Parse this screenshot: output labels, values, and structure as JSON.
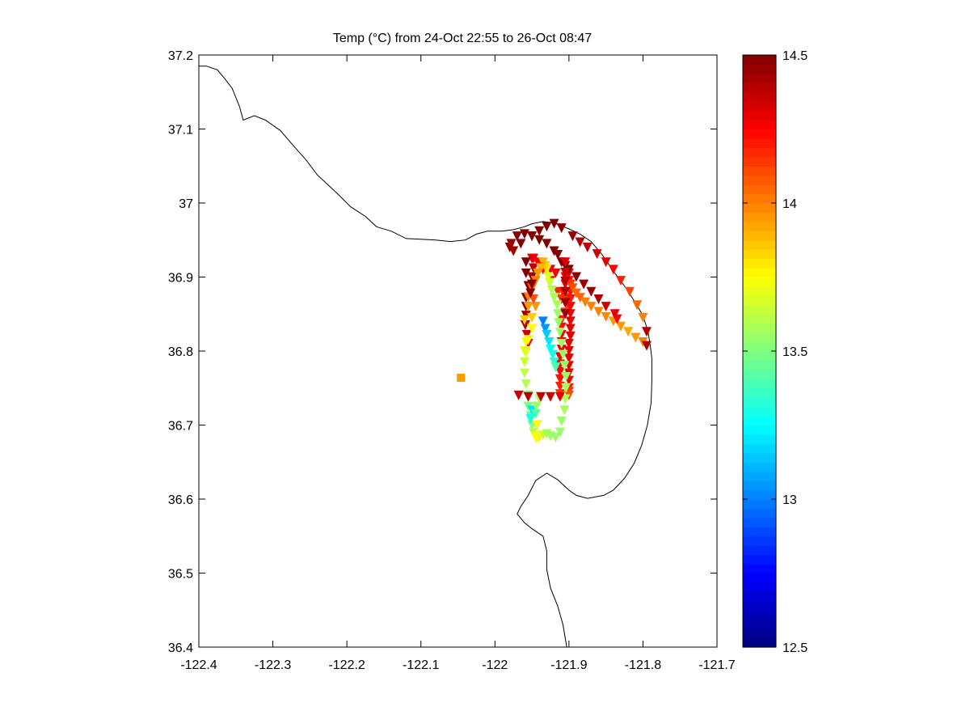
{
  "chart_data": {
    "type": "scatter",
    "title": "Temp (°C) from 24-Oct 22:55 to 26-Oct 08:47",
    "xlabel": "",
    "ylabel": "",
    "xlim": [
      -122.4,
      -121.7
    ],
    "ylim": [
      36.4,
      37.2
    ],
    "x_ticks": [
      -122.4,
      -122.3,
      -122.2,
      -122.1,
      -122.0,
      -121.9,
      -121.8,
      -121.7
    ],
    "x_tick_labels": [
      "-122.4",
      "-122.3",
      "-122.2",
      "-122.1",
      "-122",
      "-121.9",
      "-121.8",
      "-121.7"
    ],
    "y_ticks": [
      36.4,
      36.5,
      36.6,
      36.7,
      36.8,
      36.9,
      37.0,
      37.1,
      37.2
    ],
    "y_tick_labels": [
      "36.4",
      "36.5",
      "36.6",
      "36.7",
      "36.8",
      "36.9",
      "37",
      "37.1",
      "37.2"
    ],
    "grid": false,
    "colorbar": {
      "colormap": "jet",
      "range": [
        12.5,
        14.5
      ],
      "ticks": [
        12.5,
        13,
        13.5,
        14,
        14.5
      ],
      "tick_labels": [
        "12.5",
        "13",
        "13.5",
        "14",
        "14.5"
      ]
    },
    "coastline": [
      [
        -122.4,
        37.185
      ],
      [
        -122.39,
        37.185
      ],
      [
        -122.375,
        37.18
      ],
      [
        -122.365,
        37.168
      ],
      [
        -122.355,
        37.155
      ],
      [
        -122.345,
        37.13
      ],
      [
        -122.34,
        37.112
      ],
      [
        -122.325,
        37.118
      ],
      [
        -122.31,
        37.112
      ],
      [
        -122.29,
        37.098
      ],
      [
        -122.27,
        37.075
      ],
      [
        -122.255,
        37.058
      ],
      [
        -122.24,
        37.038
      ],
      [
        -122.225,
        37.024
      ],
      [
        -122.21,
        37.01
      ],
      [
        -122.195,
        36.995
      ],
      [
        -122.175,
        36.982
      ],
      [
        -122.16,
        36.968
      ],
      [
        -122.14,
        36.962
      ],
      [
        -122.12,
        36.952
      ],
      [
        -122.1,
        36.951
      ],
      [
        -122.08,
        36.95
      ],
      [
        -122.06,
        36.948
      ],
      [
        -122.04,
        36.95
      ],
      [
        -122.025,
        36.958
      ],
      [
        -122.01,
        36.962
      ],
      [
        -121.99,
        36.962
      ],
      [
        -121.975,
        36.964
      ],
      [
        -121.96,
        36.968
      ],
      [
        -121.95,
        36.972
      ],
      [
        -121.935,
        36.975
      ],
      [
        -121.92,
        36.973
      ],
      [
        -121.9,
        36.965
      ],
      [
        -121.885,
        36.958
      ],
      [
        -121.87,
        36.948
      ],
      [
        -121.855,
        36.93
      ],
      [
        -121.84,
        36.908
      ],
      [
        -121.825,
        36.888
      ],
      [
        -121.81,
        36.865
      ],
      [
        -121.8,
        36.848
      ],
      [
        -121.793,
        36.826
      ],
      [
        -121.79,
        36.806
      ],
      [
        -121.788,
        36.79
      ],
      [
        -121.788,
        36.76
      ],
      [
        -121.789,
        36.73
      ],
      [
        -121.794,
        36.7
      ],
      [
        -121.802,
        36.672
      ],
      [
        -121.812,
        36.648
      ],
      [
        -121.825,
        36.628
      ],
      [
        -121.84,
        36.612
      ],
      [
        -121.853,
        36.605
      ],
      [
        -121.875,
        36.601
      ],
      [
        -121.89,
        36.605
      ],
      [
        -121.9,
        36.612
      ],
      [
        -121.915,
        36.626
      ],
      [
        -121.93,
        36.635
      ],
      [
        -121.945,
        36.625
      ],
      [
        -121.955,
        36.605
      ],
      [
        -121.965,
        36.59
      ],
      [
        -121.97,
        36.58
      ],
      [
        -121.96,
        36.568
      ],
      [
        -121.95,
        36.56
      ],
      [
        -121.935,
        36.55
      ],
      [
        -121.93,
        36.53
      ],
      [
        -121.93,
        36.505
      ],
      [
        -121.925,
        36.48
      ],
      [
        -121.915,
        36.455
      ],
      [
        -121.908,
        36.43
      ],
      [
        -121.905,
        36.412
      ],
      [
        -121.903,
        36.4
      ]
    ],
    "series": [
      {
        "marker": "square",
        "x": [
          -122.046
        ],
        "y": [
          36.764
        ],
        "c": [
          13.95
        ]
      },
      {
        "marker": "triangle-down",
        "x": [
          -121.95,
          -121.948,
          -121.95,
          -121.955,
          -121.958,
          -121.958,
          -121.958,
          -121.959,
          -121.957,
          -121.955,
          -121.948,
          -121.942,
          -121.938,
          -121.935,
          -121.925,
          -121.915,
          -121.905,
          -121.902,
          -121.905,
          -121.91,
          -121.91,
          -121.91,
          -121.91,
          -121.91,
          -121.912,
          -121.912,
          -121.912,
          -121.912,
          -121.912,
          -121.912,
          -121.91,
          -121.908,
          -121.905,
          -121.925,
          -121.918,
          -121.905,
          -121.898,
          -121.898,
          -121.898,
          -121.898,
          -121.898,
          -121.898,
          -121.898,
          -121.898,
          -121.9,
          -121.9,
          -121.9,
          -121.9,
          -121.9,
          -121.9,
          -121.9,
          -121.9,
          -121.9,
          -121.9,
          -121.9,
          -121.898,
          -121.895,
          -121.89,
          -121.885,
          -121.878,
          -121.87,
          -121.86,
          -121.85,
          -121.84,
          -121.83,
          -121.82,
          -121.81,
          -121.8,
          -121.795,
          -121.835,
          -121.838,
          -121.85,
          -121.86,
          -121.87,
          -121.88,
          -121.89,
          -121.9,
          -121.905,
          -121.91,
          -121.915,
          -121.92,
          -121.93,
          -121.94,
          -121.95,
          -121.96,
          -121.97,
          -121.978,
          -121.98,
          -121.975,
          -121.965,
          -121.95,
          -121.94,
          -121.93,
          -121.92,
          -121.91,
          -121.895,
          -121.885,
          -121.875,
          -121.862,
          -121.85,
          -121.84,
          -121.83,
          -121.818,
          -121.808,
          -121.8,
          -121.795,
          -121.945,
          -121.95,
          -121.95,
          -121.955,
          -121.96,
          -121.96,
          -121.96,
          -121.958,
          -121.955,
          -121.955,
          -121.952,
          -121.95,
          -121.948,
          -121.946,
          -121.944,
          -121.94,
          -121.935,
          -121.93,
          -121.925,
          -121.918,
          -121.912,
          -121.91,
          -121.906,
          -121.905,
          -121.904,
          -121.904,
          -121.906,
          -121.908,
          -121.91,
          -121.912,
          -121.914,
          -121.915,
          -121.916,
          -121.92,
          -121.923,
          -121.926,
          -121.928,
          -121.93,
          -121.932,
          -121.935,
          -121.938,
          -121.942,
          -121.945,
          -121.95,
          -121.948,
          -121.955,
          -121.955,
          -121.96,
          -121.958,
          -121.958,
          -121.935,
          -121.932,
          -121.93,
          -121.927,
          -121.925,
          -121.922,
          -121.92,
          -121.918,
          -121.95,
          -121.952,
          -121.945,
          -121.944,
          -121.94,
          -121.943,
          -121.968,
          -121.955,
          -121.938,
          -121.925,
          -121.912,
          -121.958,
          -121.958,
          -121.95,
          -121.952,
          -121.905,
          -121.905,
          -121.905,
          -121.905,
          -121.905,
          -121.905
        ],
        "y": [
          36.925,
          36.912,
          36.9,
          36.888,
          36.872,
          36.86,
          36.848,
          36.835,
          36.822,
          36.81,
          36.925,
          36.92,
          36.915,
          36.91,
          36.895,
          36.88,
          36.872,
          36.862,
          36.852,
          36.842,
          36.832,
          36.822,
          36.812,
          36.802,
          36.792,
          36.782,
          36.772,
          36.762,
          36.752,
          36.742,
          36.87,
          36.88,
          36.89,
          36.91,
          36.905,
          36.9,
          36.89,
          36.88,
          36.87,
          36.86,
          36.85,
          36.84,
          36.83,
          36.82,
          36.81,
          36.8,
          36.79,
          36.78,
          36.77,
          36.76,
          36.75,
          36.745,
          36.74,
          36.905,
          36.895,
          36.89,
          36.885,
          36.878,
          36.872,
          36.866,
          36.86,
          36.853,
          36.846,
          36.84,
          36.833,
          36.826,
          36.818,
          36.812,
          36.807,
          36.843,
          36.85,
          36.86,
          36.87,
          36.88,
          36.89,
          36.9,
          36.91,
          36.915,
          36.92,
          36.93,
          36.935,
          36.945,
          36.95,
          36.955,
          36.958,
          36.955,
          36.945,
          36.94,
          36.935,
          36.945,
          36.955,
          36.962,
          36.968,
          36.972,
          36.966,
          36.955,
          36.947,
          36.94,
          36.931,
          36.92,
          36.91,
          36.895,
          36.88,
          36.862,
          36.845,
          36.826,
          36.86,
          36.845,
          36.83,
          36.815,
          36.8,
          36.785,
          36.77,
          36.755,
          36.74,
          36.725,
          36.712,
          36.7,
          36.69,
          36.685,
          36.682,
          36.683,
          36.686,
          36.688,
          36.685,
          36.683,
          36.69,
          36.705,
          36.72,
          36.735,
          36.75,
          36.765,
          36.78,
          36.795,
          36.81,
          36.825,
          36.838,
          36.85,
          36.862,
          36.872,
          36.882,
          36.892,
          36.9,
          36.91,
          36.915,
          36.92,
          36.912,
          36.905,
          36.895,
          36.885,
          36.87,
          36.873,
          36.86,
          36.842,
          36.812,
          36.798,
          36.84,
          36.83,
          36.822,
          36.812,
          36.802,
          36.795,
          36.785,
          36.778,
          36.72,
          36.708,
          36.715,
          36.725,
          36.735,
          36.7,
          36.74,
          36.738,
          36.738,
          36.738,
          36.738,
          36.92,
          36.905,
          36.89,
          36.878,
          36.92,
          36.906,
          36.894,
          36.88,
          36.865,
          36.85
        ],
        "c": [
          14.3,
          14.38,
          14.45,
          14.48,
          14.5,
          14.48,
          14.45,
          14.4,
          14.35,
          14.3,
          14.3,
          14.28,
          14.25,
          14.22,
          14.2,
          14.18,
          14.15,
          14.15,
          14.18,
          14.2,
          14.22,
          14.25,
          14.27,
          14.28,
          14.28,
          14.26,
          14.25,
          14.22,
          14.2,
          14.15,
          14.15,
          14.2,
          14.25,
          14.3,
          14.28,
          14.25,
          14.22,
          14.22,
          14.22,
          14.25,
          14.28,
          14.3,
          14.3,
          14.3,
          14.3,
          14.3,
          14.3,
          14.3,
          14.3,
          14.28,
          14.2,
          14.15,
          14.1,
          14.25,
          14.22,
          14.15,
          14.1,
          14.05,
          14.05,
          14.0,
          14.0,
          14.0,
          13.98,
          13.95,
          13.95,
          13.92,
          13.95,
          14.0,
          14.4,
          14.25,
          14.3,
          14.35,
          14.4,
          14.45,
          14.45,
          14.48,
          14.5,
          14.5,
          14.5,
          14.5,
          14.5,
          14.5,
          14.5,
          14.5,
          14.5,
          14.48,
          14.45,
          14.45,
          14.45,
          14.5,
          14.5,
          14.5,
          14.5,
          14.5,
          14.48,
          14.45,
          14.4,
          14.38,
          14.35,
          14.3,
          14.25,
          14.2,
          14.12,
          14.05,
          14.0,
          14.4,
          13.95,
          13.85,
          13.75,
          13.7,
          13.68,
          13.65,
          13.62,
          13.6,
          13.55,
          13.5,
          13.48,
          13.5,
          13.6,
          13.7,
          13.75,
          13.72,
          13.65,
          13.58,
          13.55,
          13.55,
          13.55,
          13.55,
          13.58,
          13.6,
          13.58,
          13.55,
          13.55,
          13.55,
          13.55,
          13.55,
          13.55,
          13.55,
          13.58,
          13.58,
          13.6,
          13.65,
          13.7,
          13.8,
          13.85,
          13.9,
          13.9,
          13.95,
          14.0,
          14.05,
          14.1,
          14.0,
          13.95,
          13.85,
          13.75,
          13.7,
          13.0,
          13.05,
          13.15,
          13.2,
          13.25,
          13.3,
          13.35,
          13.4,
          13.2,
          13.3,
          13.4,
          13.55,
          13.6,
          13.75,
          14.35,
          14.4,
          14.38,
          14.35,
          14.3,
          14.5,
          14.5,
          14.5,
          14.48,
          14.3,
          14.35,
          14.4,
          14.42,
          14.45,
          14.45
        ]
      }
    ]
  }
}
